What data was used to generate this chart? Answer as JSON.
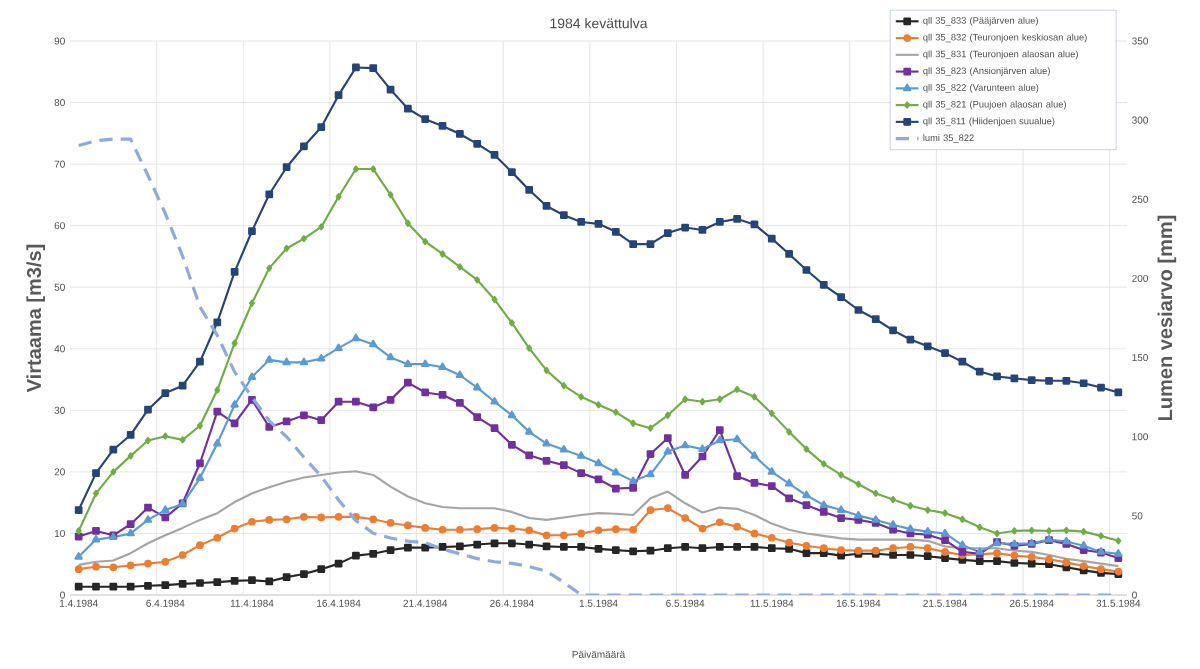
{
  "chart_data": {
    "type": "line",
    "title": "1984 kevättulva",
    "xlabel": "Päivämäärä",
    "ylabel": "Virtaama [m3/s]",
    "y2label": "Lumen vesiarvo [mm]",
    "categories": [
      "1.4.1984",
      null,
      null,
      null,
      null,
      "6.4.1984",
      null,
      null,
      null,
      null,
      "11.4.1984",
      null,
      null,
      null,
      null,
      "16.4.1984",
      null,
      null,
      null,
      null,
      "21.4.1984",
      null,
      null,
      null,
      null,
      "26.4.1984",
      null,
      null,
      null,
      null,
      "1.5.1984",
      null,
      null,
      null,
      null,
      "6.5.1984",
      null,
      null,
      null,
      null,
      "11.5.1984",
      null,
      null,
      null,
      null,
      "16.5.1984",
      null,
      null,
      null,
      null,
      "21.5.1984",
      null,
      null,
      null,
      null,
      "26.5.1984",
      null,
      null,
      null,
      null,
      "31.5.1984"
    ],
    "series": [
      {
        "name": "qll 35_833 (Pääjärven alue)",
        "color": "#262626",
        "marker": "square",
        "values": [
          1.35,
          1.35,
          1.35,
          1.35,
          1.5,
          1.6,
          1.8,
          1.95,
          2.1,
          2.3,
          2.4,
          2.2,
          2.9,
          3.4,
          4.2,
          5.1,
          6.4,
          6.7,
          7.3,
          7.7,
          7.7,
          7.8,
          7.9,
          8.2,
          8.4,
          8.4,
          8.2,
          7.9,
          7.8,
          7.8,
          7.5,
          7.3,
          7.1,
          7.2,
          7.6,
          7.8,
          7.6,
          7.8,
          7.8,
          7.8,
          7.6,
          7.5,
          6.8,
          6.8,
          6.4,
          6.7,
          6.7,
          6.5,
          6.5,
          6.3,
          6.0,
          5.7,
          5.5,
          5.5,
          5.2,
          5.1,
          5.0,
          4.5,
          4.0,
          3.6,
          3.4
        ]
      },
      {
        "name": "qll 35_832 (Teuronjoen keskiosan alue)",
        "color": "#ed7d31",
        "marker": "circle",
        "values": [
          4.2,
          4.6,
          4.5,
          4.8,
          5.1,
          5.4,
          6.5,
          8.1,
          9.3,
          10.8,
          11.9,
          12.2,
          12.3,
          12.7,
          12.6,
          12.7,
          12.7,
          12.3,
          11.7,
          11.3,
          10.9,
          10.6,
          10.6,
          10.7,
          10.9,
          10.8,
          10.5,
          9.7,
          9.7,
          10.0,
          10.5,
          10.7,
          10.6,
          13.8,
          14.1,
          12.5,
          10.8,
          11.8,
          11.1,
          10.0,
          9.3,
          8.5,
          8.0,
          7.6,
          7.3,
          7.2,
          7.2,
          7.6,
          7.8,
          7.6,
          7.0,
          6.5,
          6.6,
          6.8,
          6.4,
          6.2,
          5.8,
          5.3,
          4.7,
          4.2,
          3.8
        ]
      },
      {
        "name": "qll 35_831 (Teuronjoen alaosan alue)",
        "color": "#a5a5a5",
        "marker": "none",
        "values": [
          4.9,
          5.4,
          5.6,
          6.8,
          8.4,
          9.7,
          10.9,
          12.2,
          13.3,
          15.1,
          16.5,
          17.5,
          18.4,
          19.1,
          19.5,
          19.9,
          20.1,
          19.5,
          17.6,
          16.0,
          14.9,
          14.3,
          14.1,
          14.1,
          14.1,
          13.5,
          12.5,
          12.2,
          12.6,
          13.0,
          13.3,
          13.2,
          13.0,
          15.7,
          16.8,
          14.9,
          13.4,
          14.2,
          14.0,
          13.0,
          11.6,
          10.6,
          10.0,
          9.6,
          9.2,
          9.0,
          9.0,
          9.0,
          9.0,
          8.8,
          7.9,
          7.6,
          7.6,
          7.6,
          7.2,
          7.0,
          6.5,
          5.9,
          5.5,
          5.1,
          4.7
        ]
      },
      {
        "name": "qll 35_823 (Ansionjärven alue)",
        "color": "#7030a0",
        "marker": "square",
        "values": [
          9.5,
          10.4,
          9.7,
          11.5,
          14.2,
          12.6,
          14.9,
          21.4,
          29.8,
          27.9,
          31.7,
          27.3,
          28.2,
          29.2,
          28.4,
          31.4,
          31.4,
          30.5,
          31.7,
          34.5,
          32.9,
          32.5,
          31.2,
          28.9,
          27.1,
          24.4,
          22.7,
          21.8,
          21.1,
          19.8,
          18.8,
          17.3,
          17.4,
          22.9,
          25.5,
          19.5,
          22.5,
          26.8,
          19.3,
          18.2,
          17.7,
          15.7,
          14.6,
          13.5,
          12.5,
          12.2,
          11.7,
          10.6,
          10.0,
          9.8,
          8.9,
          7.0,
          6.7,
          8.6,
          8.0,
          8.3,
          8.9,
          8.3,
          7.3,
          6.9,
          6.0
        ]
      },
      {
        "name": "qll 35_822 (Varunteen alue)",
        "color": "#5b9bd5",
        "marker": "triangle",
        "values": [
          6.2,
          9.0,
          9.4,
          10.0,
          12.2,
          13.8,
          14.8,
          19.0,
          24.6,
          30.9,
          35.4,
          38.2,
          37.8,
          37.8,
          38.4,
          40.1,
          41.7,
          40.7,
          38.6,
          37.5,
          37.5,
          37.0,
          35.7,
          33.7,
          31.4,
          29.2,
          26.5,
          24.6,
          23.6,
          22.6,
          21.4,
          19.9,
          18.5,
          19.6,
          23.3,
          24.3,
          23.7,
          25.1,
          25.3,
          22.6,
          20.0,
          18.1,
          16.2,
          14.6,
          13.8,
          12.9,
          12.2,
          11.4,
          10.7,
          10.3,
          10.0,
          8.1,
          7.0,
          8.4,
          8.3,
          8.4,
          9.0,
          8.7,
          8.0,
          7.0,
          6.7
        ]
      },
      {
        "name": "qll 35_821 (Puujoen alaosan alue)",
        "color": "#70ad47",
        "marker": "diamond",
        "values": [
          10.4,
          16.5,
          20.0,
          22.6,
          25.1,
          25.8,
          25.2,
          27.5,
          33.3,
          40.9,
          47.4,
          53.1,
          56.3,
          57.9,
          59.8,
          64.7,
          69.2,
          69.2,
          65.0,
          60.4,
          57.4,
          55.4,
          53.3,
          51.2,
          48.0,
          44.2,
          40.1,
          36.5,
          34.0,
          32.2,
          30.9,
          29.7,
          27.9,
          27.1,
          29.2,
          31.8,
          31.4,
          31.8,
          33.4,
          32.2,
          29.5,
          26.5,
          23.7,
          21.3,
          19.5,
          18.0,
          16.5,
          15.5,
          14.5,
          13.8,
          13.3,
          12.3,
          11.0,
          10.0,
          10.4,
          10.5,
          10.4,
          10.5,
          10.3,
          9.6,
          8.8
        ]
      },
      {
        "name": "qll 35_811 (Hiidenjoen suualue)",
        "color": "#264478",
        "marker": "square",
        "values": [
          13.8,
          19.8,
          23.6,
          26.0,
          30.1,
          32.8,
          34.0,
          37.9,
          44.3,
          52.5,
          59.1,
          65.1,
          69.5,
          72.9,
          76.0,
          81.2,
          85.7,
          85.6,
          82.1,
          79.0,
          77.3,
          76.2,
          74.9,
          73.3,
          71.5,
          68.7,
          65.8,
          63.2,
          61.7,
          60.6,
          60.3,
          59.0,
          57.0,
          57.0,
          58.8,
          59.7,
          59.3,
          60.6,
          61.1,
          60.2,
          57.9,
          55.4,
          52.8,
          50.4,
          48.4,
          46.3,
          44.8,
          43.0,
          41.5,
          40.4,
          39.3,
          37.9,
          36.3,
          35.5,
          35.2,
          34.9,
          34.8,
          34.8,
          34.4,
          33.7,
          32.9
        ]
      },
      {
        "name": "lumi 35_822",
        "color": "#8faadc",
        "marker": "none",
        "line_style": "dashed",
        "axis": "y2",
        "values": [
          284,
          287,
          288,
          288,
          265,
          241,
          214,
          182,
          164,
          141,
          125,
          110,
          100,
          87,
          75,
          60,
          47,
          39,
          36,
          34,
          33,
          29,
          26,
          23,
          21,
          20,
          18,
          15,
          8,
          0,
          0,
          0,
          0,
          0,
          0,
          0,
          0,
          0,
          0,
          0,
          0,
          0,
          0,
          0,
          0,
          0,
          0,
          0,
          0,
          0,
          0,
          0,
          0,
          0,
          0,
          0,
          0,
          0,
          0,
          0,
          0
        ]
      }
    ],
    "ylim": [
      0,
      90
    ],
    "yticks": [
      0,
      10,
      20,
      30,
      40,
      50,
      60,
      70,
      80,
      90
    ],
    "y2lim": [
      0,
      350
    ],
    "y2ticks": [
      0,
      50,
      100,
      150,
      200,
      250,
      300,
      350
    ],
    "grid": true,
    "legend": "top right"
  }
}
